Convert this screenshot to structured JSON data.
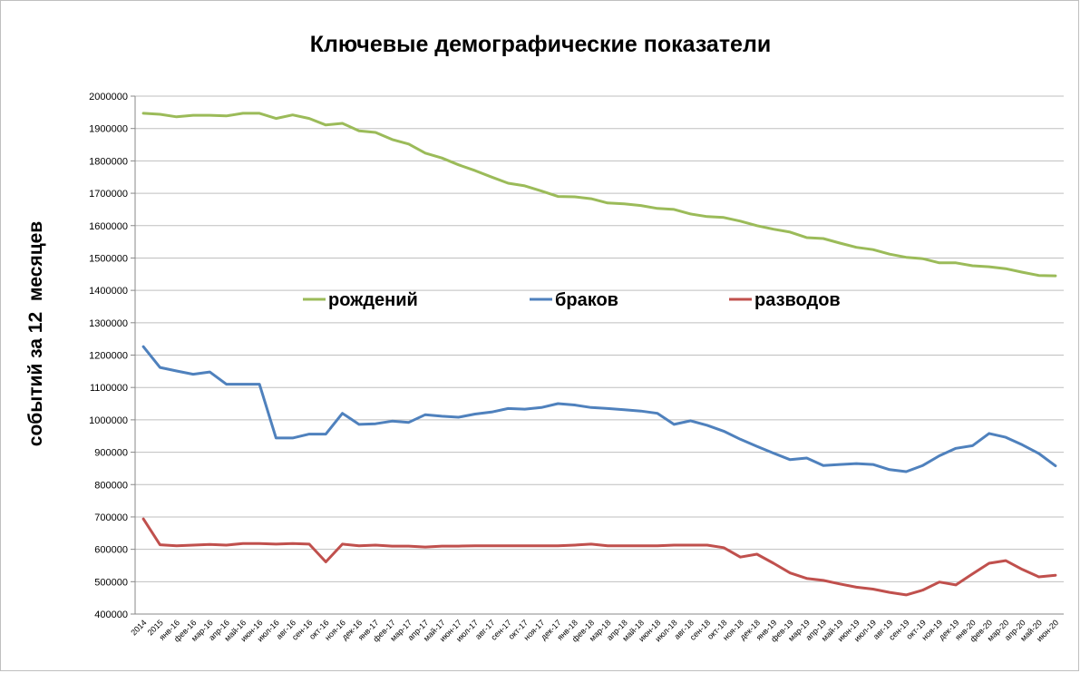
{
  "chart_data": {
    "type": "line",
    "title": "Ключевые демографические показатели",
    "ylabel": "событий за 12  месяцев",
    "xlabel": "",
    "ylim": [
      400000,
      2000000
    ],
    "ytick_step": 100000,
    "grid": true,
    "legend_position": "middle",
    "categories": [
      "2014",
      "2015",
      "янв-16",
      "фев-16",
      "мар-16",
      "апр-16",
      "май-16",
      "июн-16",
      "июл-16",
      "авг-16",
      "сен-16",
      "окт-16",
      "ноя-16",
      "дек-16",
      "янв-17",
      "фев-17",
      "мар-17",
      "апр-17",
      "май-17",
      "июн-17",
      "июл-17",
      "авг-17",
      "сен-17",
      "окт-17",
      "ноя-17",
      "дек-17",
      "янв-18",
      "фев-18",
      "мар-18",
      "апр-18",
      "май-18",
      "июн-18",
      "июл-18",
      "авг-18",
      "сен-18",
      "окт-18",
      "ноя-18",
      "дек-18",
      "янв-19",
      "фев-19",
      "мар-19",
      "апр-19",
      "май-19",
      "июн-19",
      "июл-19",
      "авг-19",
      "сен-19",
      "окт-19",
      "ноя-19",
      "дек-19",
      "янв-20",
      "фев-20",
      "мар-20",
      "апр-20",
      "май-20",
      "июн-20"
    ],
    "series": [
      {
        "name": "рождений",
        "color": "#9bbb59",
        "values": [
          1947000,
          1944000,
          1936000,
          1941000,
          1941000,
          1939000,
          1947000,
          1947000,
          1931000,
          1942000,
          1931000,
          1911000,
          1916000,
          1893000,
          1888000,
          1866000,
          1852000,
          1824000,
          1809000,
          1788000,
          1770000,
          1750000,
          1731000,
          1723000,
          1707000,
          1690000,
          1689000,
          1683000,
          1670000,
          1667000,
          1662000,
          1653000,
          1650000,
          1636000,
          1628000,
          1625000,
          1614000,
          1600000,
          1589000,
          1580000,
          1563000,
          1560000,
          1546000,
          1533000,
          1526000,
          1512000,
          1502000,
          1498000,
          1485000,
          1485000,
          1476000,
          1473000,
          1467000,
          1456000,
          1446000,
          1445000
        ]
      },
      {
        "name": "браков",
        "color": "#4f81bd",
        "values": [
          1226000,
          1162000,
          1151000,
          1141000,
          1148000,
          1110000,
          1110000,
          1110000,
          944000,
          944000,
          956000,
          956000,
          1020000,
          986000,
          988000,
          996000,
          992000,
          1016000,
          1011000,
          1008000,
          1018000,
          1024000,
          1035000,
          1033000,
          1038000,
          1050000,
          1046000,
          1038000,
          1035000,
          1031000,
          1027000,
          1020000,
          986000,
          997000,
          983000,
          965000,
          940000,
          918000,
          897000,
          877000,
          882000,
          859000,
          862000,
          865000,
          862000,
          846000,
          840000,
          859000,
          889000,
          912000,
          920000,
          958000,
          946000,
          923000,
          896000,
          858000
        ]
      },
      {
        "name": "разводов",
        "color": "#c0504d",
        "values": [
          694000,
          614000,
          611000,
          613000,
          615000,
          613000,
          618000,
          618000,
          616000,
          618000,
          616000,
          561000,
          616000,
          611000,
          613000,
          610000,
          610000,
          607000,
          610000,
          610000,
          611000,
          611000,
          611000,
          611000,
          611000,
          611000,
          613000,
          616000,
          611000,
          611000,
          611000,
          611000,
          613000,
          613000,
          613000,
          605000,
          576000,
          585000,
          557000,
          527000,
          510000,
          504000,
          493000,
          483000,
          477000,
          467000,
          459000,
          474000,
          499000,
          490000,
          524000,
          557000,
          565000,
          538000,
          515000,
          520000
        ]
      }
    ]
  }
}
